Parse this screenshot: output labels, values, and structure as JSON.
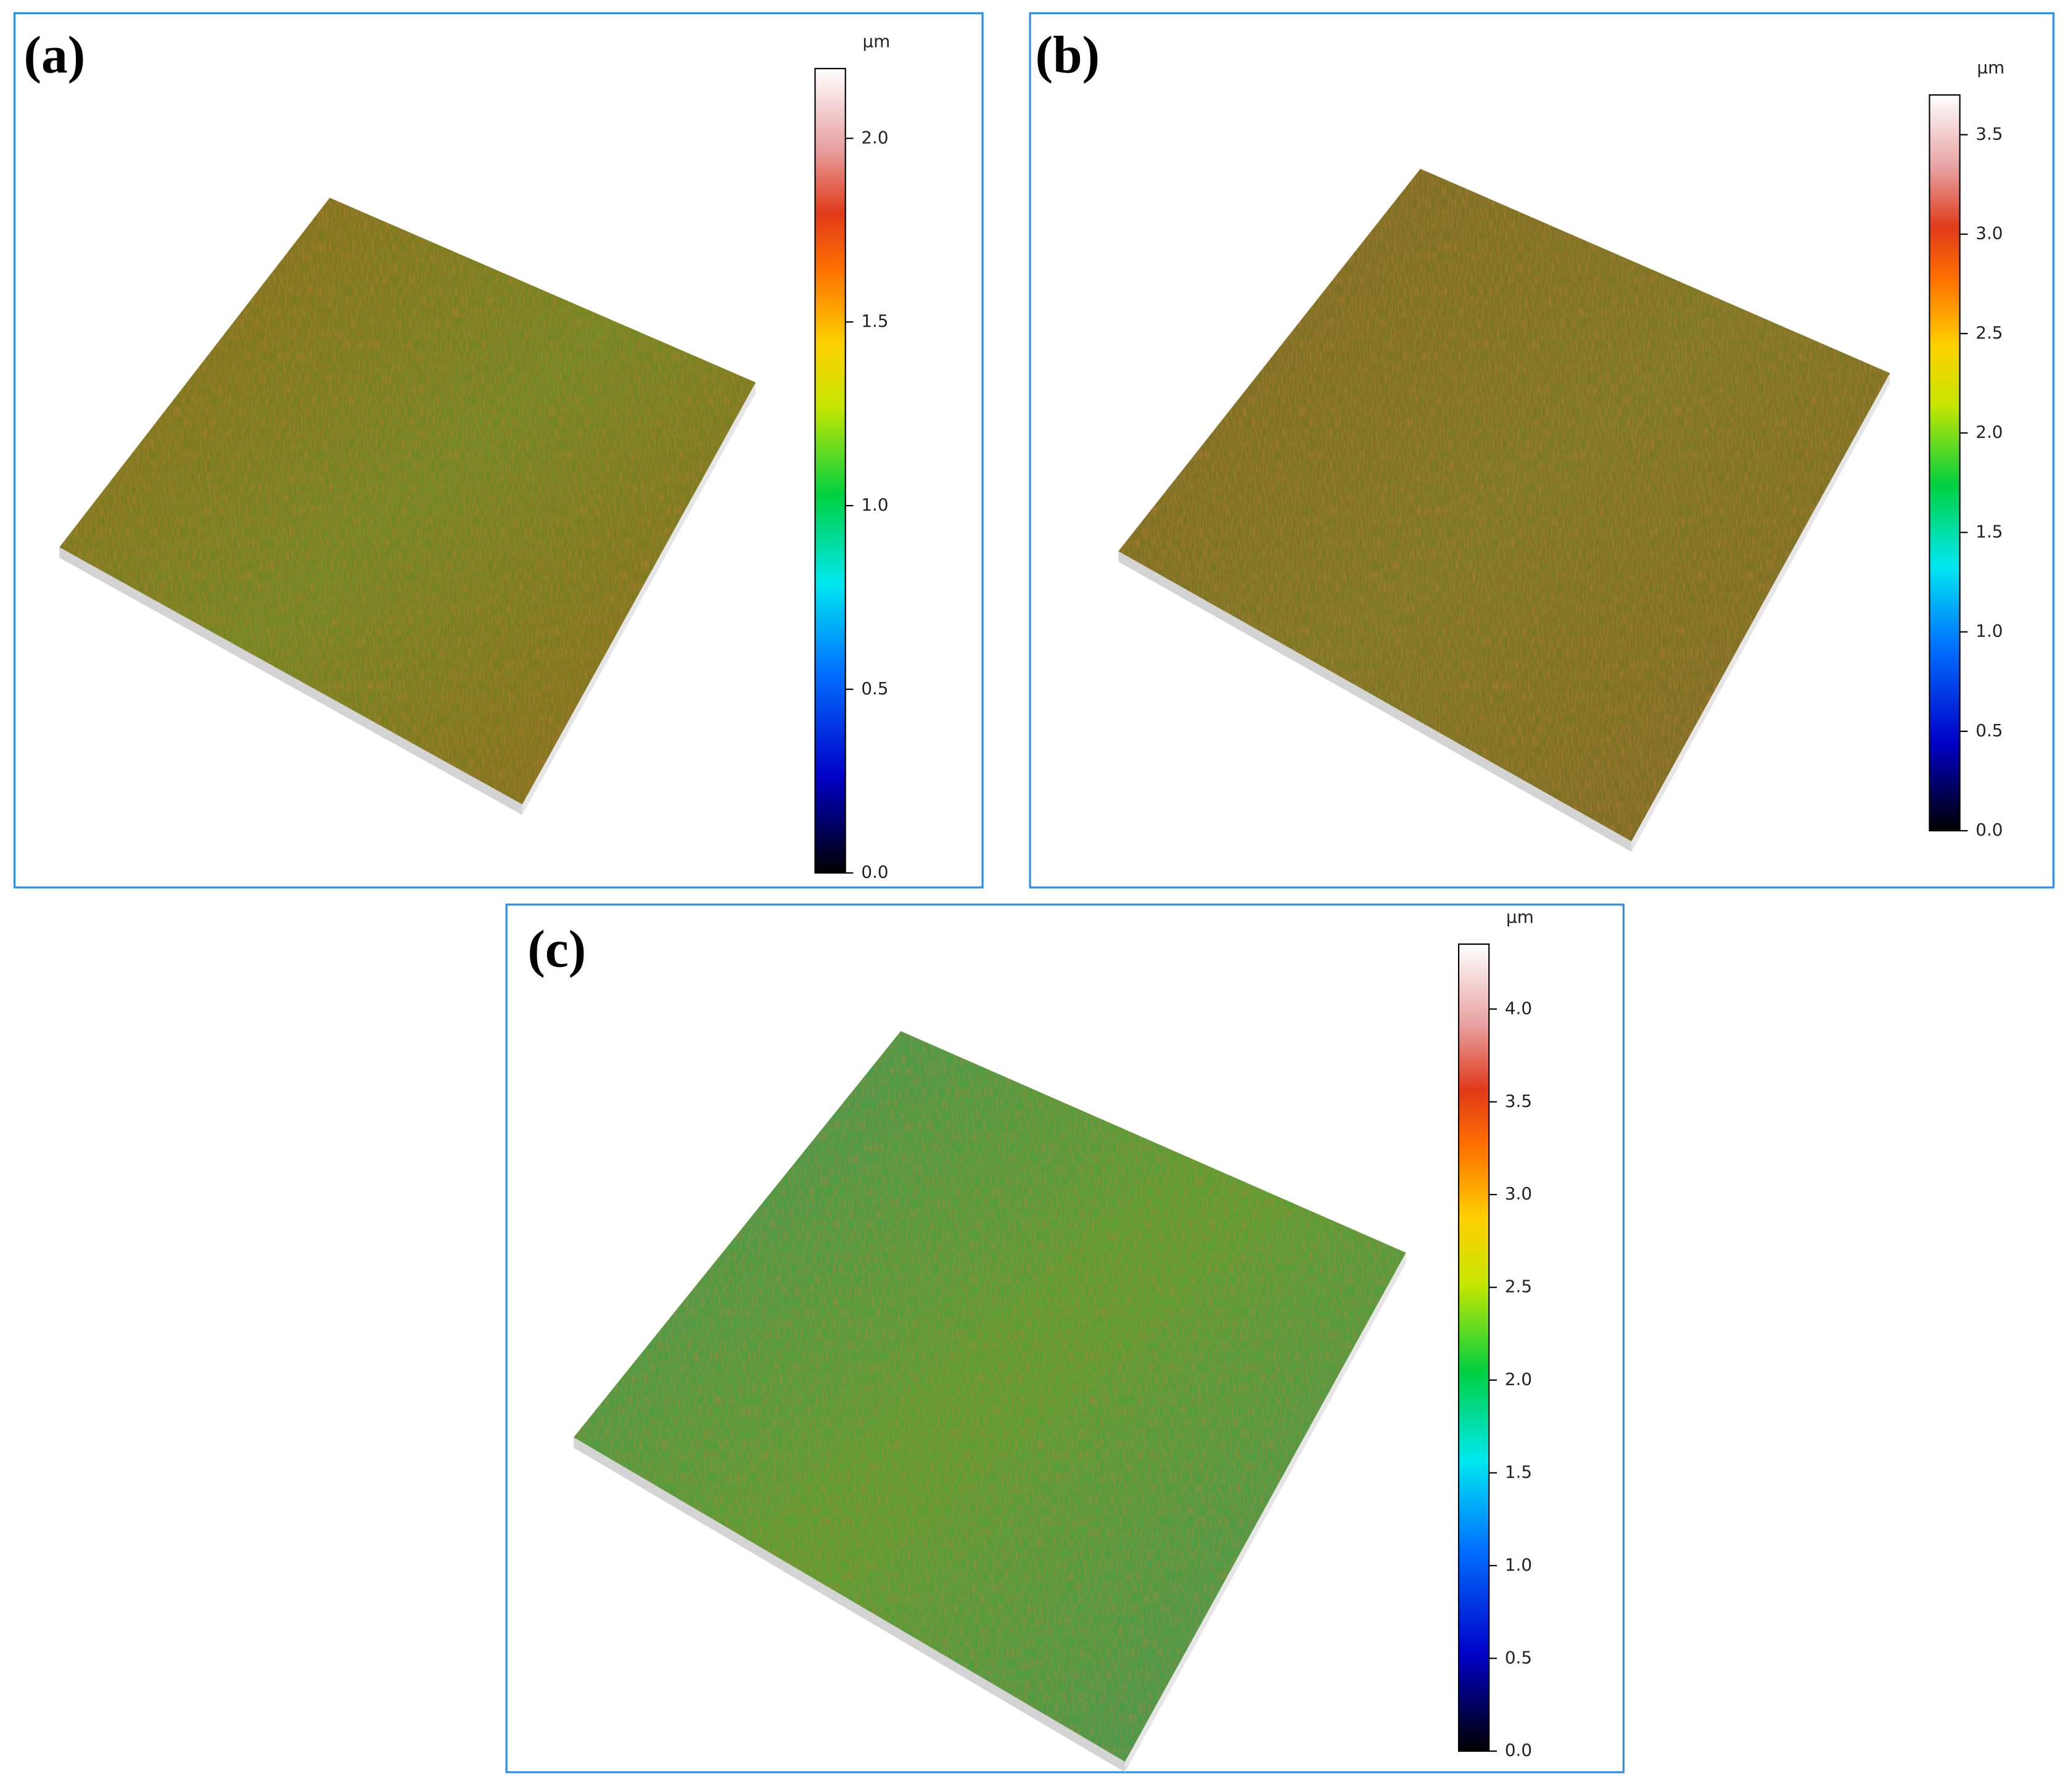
{
  "panels": [
    {
      "label": "(a)",
      "unit": "μm",
      "colorbar": {
        "lim": [
          0,
          2.19
        ],
        "ticks": [
          {
            "value": 0,
            "label": "0.0"
          },
          {
            "value": 0.5,
            "label": "0.5"
          },
          {
            "value": 1,
            "label": "1.0"
          },
          {
            "value": 1.5,
            "label": "1.5"
          },
          {
            "value": 2,
            "label": "2.0"
          }
        ]
      }
    },
    {
      "label": "(b)",
      "unit": "μm",
      "colorbar": {
        "lim": [
          0,
          3.7
        ],
        "ticks": [
          {
            "value": 0,
            "label": "0.0"
          },
          {
            "value": 0.5,
            "label": "0.5"
          },
          {
            "value": 1,
            "label": "1.0"
          },
          {
            "value": 1.5,
            "label": "1.5"
          },
          {
            "value": 2,
            "label": "2.0"
          },
          {
            "value": 2.5,
            "label": "2.5"
          },
          {
            "value": 3,
            "label": "3.0"
          },
          {
            "value": 3.5,
            "label": "3.5"
          }
        ]
      }
    },
    {
      "label": "(c)",
      "unit": "μm",
      "colorbar": {
        "lim": [
          0,
          4.35
        ],
        "ticks": [
          {
            "value": 0,
            "label": "0.0"
          },
          {
            "value": 0.5,
            "label": "0.5"
          },
          {
            "value": 1,
            "label": "1.0"
          },
          {
            "value": 1.5,
            "label": "1.5"
          },
          {
            "value": 2,
            "label": "2.0"
          },
          {
            "value": 2.5,
            "label": "2.5"
          },
          {
            "value": 3,
            "label": "3.0"
          },
          {
            "value": 3.5,
            "label": "3.5"
          },
          {
            "value": 4,
            "label": "4.0"
          }
        ]
      }
    }
  ]
}
